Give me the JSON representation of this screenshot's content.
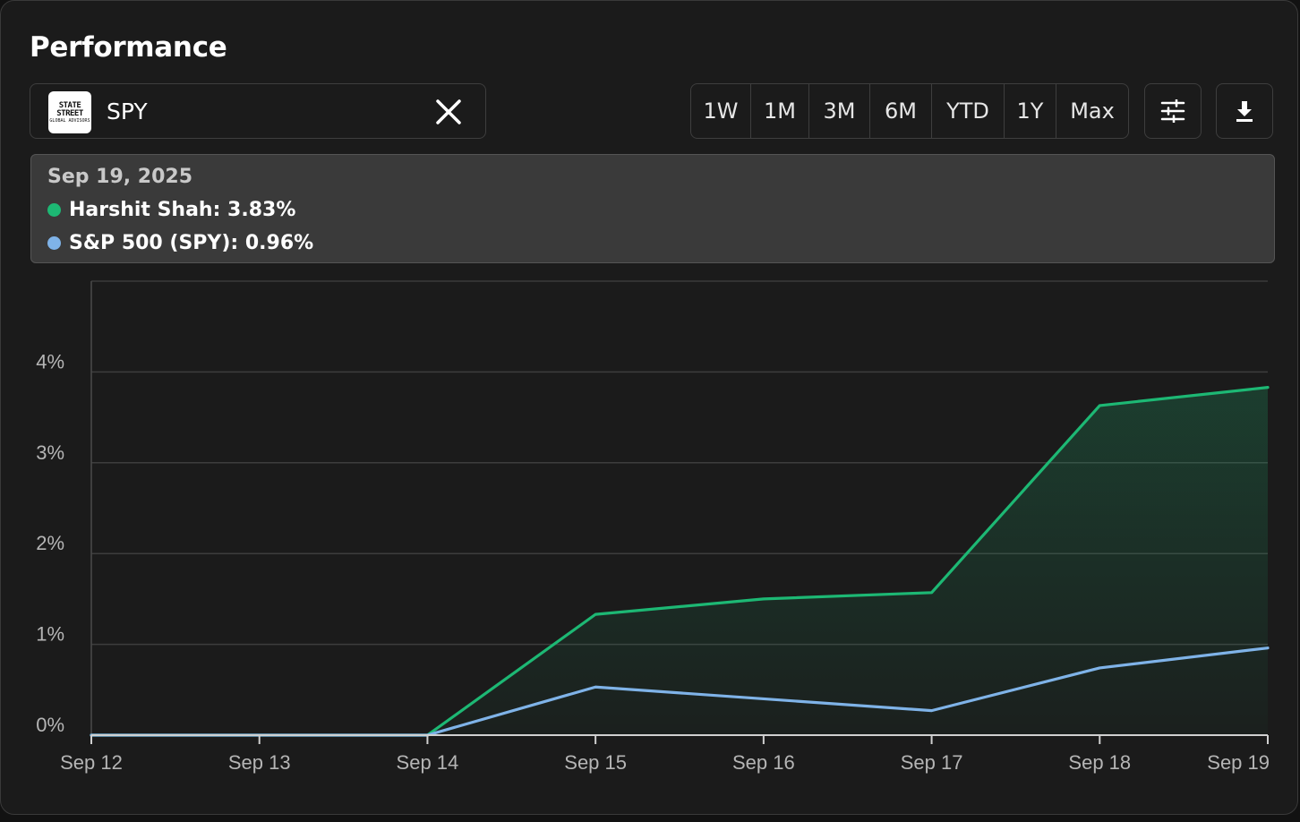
{
  "header": {
    "title": "Performance"
  },
  "search": {
    "ticker": "SPY",
    "logo_line1": "STATE",
    "logo_line2": "STREET",
    "logo_line3": "GLOBAL ADVISORS"
  },
  "ranges": [
    {
      "label": "1W",
      "active": true
    },
    {
      "label": "1M",
      "active": false
    },
    {
      "label": "3M",
      "active": false
    },
    {
      "label": "6M",
      "active": false
    },
    {
      "label": "YTD",
      "active": false
    },
    {
      "label": "1Y",
      "active": false
    },
    {
      "label": "Max",
      "active": false
    }
  ],
  "icons": {
    "settings": "sliders-icon",
    "download": "download-icon",
    "close": "close-icon"
  },
  "tooltip": {
    "date": "Sep 19, 2025",
    "rows": [
      {
        "text": "Harshit Shah: 3.83%",
        "color": "#1db874"
      },
      {
        "text": "S&P 500 (SPY): 0.96%",
        "color": "#7fb3e8"
      }
    ]
  },
  "chart_data": {
    "type": "area",
    "categories": [
      "Sep 12",
      "Sep 13",
      "Sep 14",
      "Sep 15",
      "Sep 16",
      "Sep 17",
      "Sep 18",
      "Sep 19"
    ],
    "series": [
      {
        "name": "Harshit Shah",
        "color": "#1db874",
        "values": [
          0,
          0,
          0,
          1.33,
          1.5,
          1.57,
          3.63,
          3.83
        ]
      },
      {
        "name": "S&P 500 (SPY)",
        "color": "#7fb3e8",
        "values": [
          0,
          0,
          0,
          0.53,
          0.4,
          0.27,
          0.74,
          0.96
        ]
      }
    ],
    "y_ticks": [
      "0%",
      "1%",
      "2%",
      "3%",
      "4%"
    ],
    "ylim": [
      0,
      5
    ],
    "grid": true,
    "xlabel": "",
    "ylabel": ""
  }
}
